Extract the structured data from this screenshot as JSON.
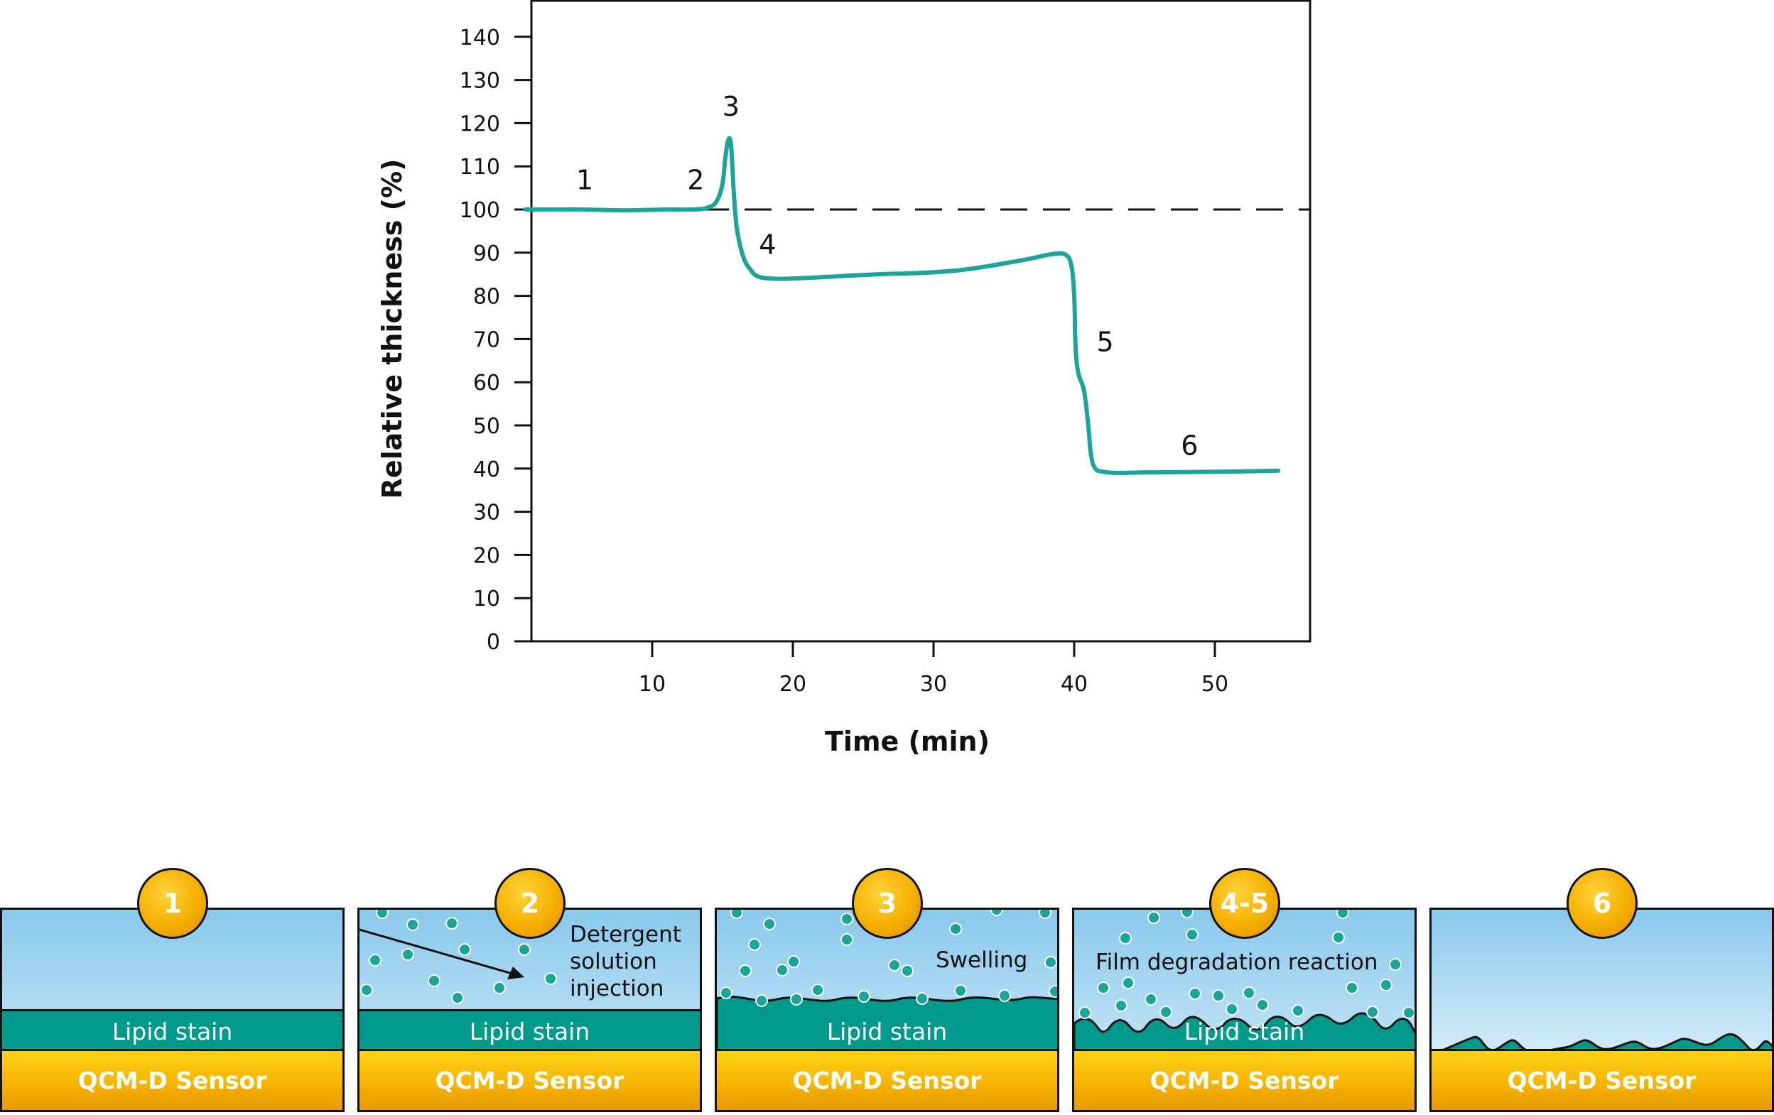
{
  "chart_data": {
    "type": "line",
    "xlabel": "Time (min)",
    "ylabel": "Relative thickness (%)",
    "xlim": [
      0,
      57
    ],
    "ylim": [
      0,
      145
    ],
    "xticks": [
      10,
      20,
      30,
      40,
      50
    ],
    "yticks": [
      0,
      10,
      20,
      30,
      40,
      50,
      60,
      70,
      80,
      90,
      100,
      110,
      120,
      130,
      140
    ],
    "reference_line": {
      "y": 100,
      "style": "dashed"
    },
    "series_color": "#1aa59a",
    "series": [
      {
        "x": [
          1,
          3,
          5,
          8,
          11,
          13,
          14,
          14.6,
          15,
          15.2,
          15.4,
          15.6,
          15.8,
          16,
          16.3,
          16.6,
          17,
          17.5,
          18.5,
          20,
          23,
          26,
          29,
          32,
          35,
          37,
          38.5,
          39.4,
          39.8,
          40,
          40.1,
          40.3,
          40.7,
          41,
          41.2,
          41.5,
          42,
          43,
          45,
          48,
          51,
          54.5
        ],
        "y": [
          100,
          100,
          100,
          99.8,
          100,
          100,
          100.5,
          102,
          106,
          112,
          116,
          115,
          104,
          96,
          91,
          88,
          86,
          84.5,
          84,
          84,
          84.5,
          85,
          85.3,
          86,
          87.5,
          88.7,
          89.7,
          89.5,
          87,
          80,
          68,
          62,
          58,
          50,
          43,
          40,
          39.3,
          39,
          39.1,
          39.2,
          39.3,
          39.5
        ]
      }
    ],
    "annotations": [
      {
        "text": "1",
        "x": 5.2,
        "y": 107
      },
      {
        "text": "2",
        "x": 13.1,
        "y": 107
      },
      {
        "text": "3",
        "x": 15.6,
        "y": 124
      },
      {
        "text": "4",
        "x": 18.2,
        "y": 92
      },
      {
        "text": "5",
        "x": 42.2,
        "y": 69.5
      },
      {
        "text": "6",
        "x": 48.2,
        "y": 45.5
      }
    ]
  },
  "panels": [
    {
      "badge": "1",
      "lipid_label": "Lipid stain",
      "sensor_label": "QCM-D Sensor"
    },
    {
      "badge": "2",
      "lipid_label": "Lipid stain",
      "sensor_label": "QCM-D Sensor",
      "note_lines": [
        "Detergent",
        "solution",
        "injection"
      ]
    },
    {
      "badge": "3",
      "lipid_label": "Lipid stain",
      "sensor_label": "QCM-D Sensor",
      "note_lines": [
        "Swelling"
      ]
    },
    {
      "badge": "4-5",
      "lipid_label": "Lipid stain",
      "sensor_label": "QCM-D Sensor",
      "note_lines": [
        "Film degradation reaction"
      ]
    },
    {
      "badge": "6",
      "sensor_label": "QCM-D Sensor"
    }
  ],
  "colors": {
    "lipid": "#009a8c",
    "liquid_top": "#89c9ec",
    "sensor": "#f5b000",
    "molecule": "#1aa59a"
  }
}
